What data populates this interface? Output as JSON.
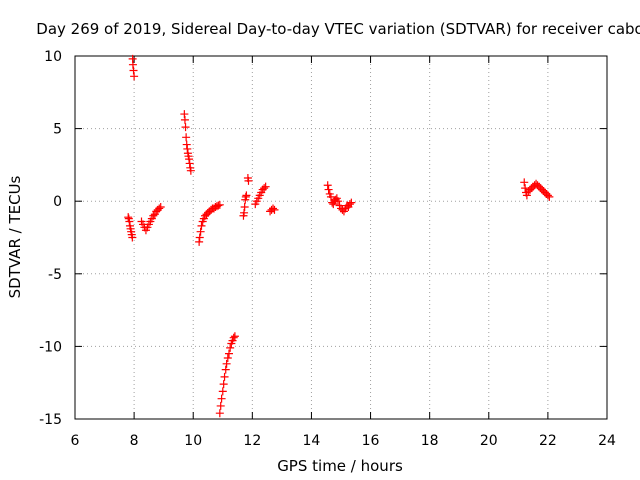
{
  "chart_data": {
    "type": "scatter",
    "title": "Day 269 of 2019, Sidereal Day-to-day VTEC variation (SDTVAR) for receiver cabo",
    "xlabel": "GPS time / hours",
    "ylabel": "SDTVAR / TECUs",
    "xlim": [
      6,
      24
    ],
    "ylim": [
      -15,
      10
    ],
    "xticks": [
      6,
      8,
      10,
      12,
      14,
      16,
      18,
      20,
      22,
      24
    ],
    "yticks": [
      -15,
      -10,
      -5,
      0,
      5,
      10
    ],
    "xtick_labels": [
      "6",
      "8",
      "10",
      "12",
      "14",
      "16",
      "18",
      "20",
      "22",
      "24"
    ],
    "ytick_labels": [
      "-15",
      "-10",
      "-5",
      "0",
      "5",
      "10"
    ],
    "grid": true,
    "marker": "+",
    "marker_color": "#ff0000",
    "series": [
      {
        "name": "SDTVAR",
        "points": [
          [
            7.8,
            -1.1
          ],
          [
            7.82,
            -1.2
          ],
          [
            7.84,
            -1.4
          ],
          [
            7.86,
            -1.7
          ],
          [
            7.88,
            -1.9
          ],
          [
            7.9,
            -2.1
          ],
          [
            7.92,
            -2.3
          ],
          [
            7.94,
            -2.5
          ],
          [
            7.95,
            9.8
          ],
          [
            7.96,
            9.4
          ],
          [
            7.98,
            9.0
          ],
          [
            8.0,
            8.6
          ],
          [
            8.25,
            -1.4
          ],
          [
            8.3,
            -1.6
          ],
          [
            8.35,
            -1.8
          ],
          [
            8.4,
            -2.0
          ],
          [
            8.45,
            -1.8
          ],
          [
            8.5,
            -1.6
          ],
          [
            8.55,
            -1.4
          ],
          [
            8.6,
            -1.2
          ],
          [
            8.65,
            -1.0
          ],
          [
            8.7,
            -0.9
          ],
          [
            8.75,
            -0.7
          ],
          [
            8.8,
            -0.6
          ],
          [
            8.85,
            -0.5
          ],
          [
            8.9,
            -0.4
          ],
          [
            9.7,
            6.0
          ],
          [
            9.72,
            5.6
          ],
          [
            9.74,
            5.1
          ],
          [
            9.76,
            4.4
          ],
          [
            9.78,
            3.9
          ],
          [
            9.8,
            3.6
          ],
          [
            9.82,
            3.3
          ],
          [
            9.84,
            3.1
          ],
          [
            9.86,
            2.9
          ],
          [
            9.88,
            2.6
          ],
          [
            9.9,
            2.3
          ],
          [
            9.92,
            2.1
          ],
          [
            10.2,
            -2.8
          ],
          [
            10.22,
            -2.5
          ],
          [
            10.25,
            -2.1
          ],
          [
            10.28,
            -1.7
          ],
          [
            10.32,
            -1.4
          ],
          [
            10.36,
            -1.2
          ],
          [
            10.4,
            -1.0
          ],
          [
            10.45,
            -0.9
          ],
          [
            10.5,
            -0.8
          ],
          [
            10.55,
            -0.7
          ],
          [
            10.6,
            -0.6
          ],
          [
            10.65,
            -0.5
          ],
          [
            10.7,
            -0.5
          ],
          [
            10.75,
            -0.4
          ],
          [
            10.8,
            -0.35
          ],
          [
            10.85,
            -0.3
          ],
          [
            10.9,
            -0.25
          ],
          [
            10.9,
            -14.6
          ],
          [
            10.93,
            -14.1
          ],
          [
            10.96,
            -13.6
          ],
          [
            11.0,
            -13.1
          ],
          [
            11.03,
            -12.6
          ],
          [
            11.06,
            -12.1
          ],
          [
            11.1,
            -11.6
          ],
          [
            11.13,
            -11.2
          ],
          [
            11.17,
            -10.8
          ],
          [
            11.21,
            -10.5
          ],
          [
            11.25,
            -10.1
          ],
          [
            11.29,
            -9.8
          ],
          [
            11.33,
            -9.6
          ],
          [
            11.37,
            -9.4
          ],
          [
            11.41,
            -9.3
          ],
          [
            11.7,
            -1.0
          ],
          [
            11.72,
            -0.8
          ],
          [
            11.74,
            -0.4
          ],
          [
            11.76,
            0.1
          ],
          [
            11.78,
            0.3
          ],
          [
            11.8,
            0.4
          ],
          [
            11.85,
            1.6
          ],
          [
            11.87,
            1.4
          ],
          [
            12.1,
            -0.2
          ],
          [
            12.15,
            0.0
          ],
          [
            12.2,
            0.2
          ],
          [
            12.25,
            0.4
          ],
          [
            12.3,
            0.6
          ],
          [
            12.35,
            0.8
          ],
          [
            12.4,
            0.9
          ],
          [
            12.45,
            1.0
          ],
          [
            12.6,
            -0.7
          ],
          [
            12.65,
            -0.6
          ],
          [
            12.7,
            -0.5
          ],
          [
            12.75,
            -0.6
          ],
          [
            14.55,
            1.1
          ],
          [
            14.58,
            0.8
          ],
          [
            14.62,
            0.5
          ],
          [
            14.66,
            0.3
          ],
          [
            14.7,
            -0.1
          ],
          [
            14.74,
            -0.2
          ],
          [
            14.78,
            0.0
          ],
          [
            14.82,
            0.1
          ],
          [
            14.86,
            0.2
          ],
          [
            14.9,
            0.0
          ],
          [
            14.95,
            -0.3
          ],
          [
            15.0,
            -0.5
          ],
          [
            15.05,
            -0.6
          ],
          [
            15.1,
            -0.7
          ],
          [
            15.15,
            -0.5
          ],
          [
            15.2,
            -0.3
          ],
          [
            15.25,
            -0.4
          ],
          [
            15.3,
            -0.2
          ],
          [
            15.35,
            -0.1
          ],
          [
            21.2,
            1.3
          ],
          [
            21.23,
            0.9
          ],
          [
            21.26,
            0.6
          ],
          [
            21.29,
            0.4
          ],
          [
            21.35,
            0.7
          ],
          [
            21.4,
            0.8
          ],
          [
            21.45,
            0.9
          ],
          [
            21.5,
            1.0
          ],
          [
            21.55,
            1.1
          ],
          [
            21.6,
            1.2
          ],
          [
            21.65,
            1.1
          ],
          [
            21.7,
            1.0
          ],
          [
            21.75,
            0.9
          ],
          [
            21.8,
            0.8
          ],
          [
            21.85,
            0.7
          ],
          [
            21.9,
            0.6
          ],
          [
            21.95,
            0.5
          ],
          [
            22.0,
            0.4
          ],
          [
            22.05,
            0.3
          ]
        ]
      }
    ]
  }
}
